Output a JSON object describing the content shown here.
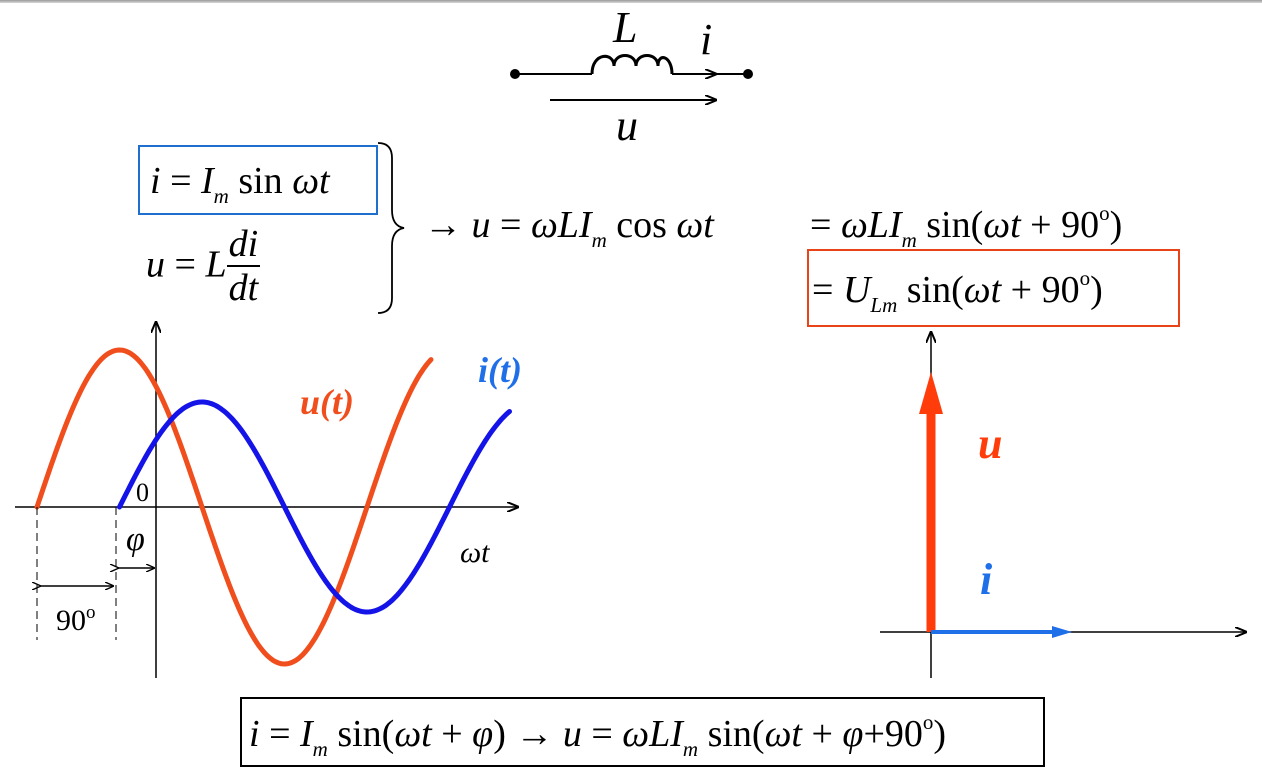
{
  "circuit": {
    "inductor_label": "L",
    "current_label": "i",
    "voltage_label": "u"
  },
  "equations": {
    "current_def": {
      "lhs": "i",
      "eq": "=",
      "amp": "I",
      "amp_sub": "m",
      "func": "sin",
      "arg": "ωt"
    },
    "voltage_def": {
      "lhs": "u",
      "eq": "=",
      "coef": "L",
      "num": "di",
      "den": "dt"
    },
    "result_line1": {
      "arrow": "→",
      "lhs": "u",
      "eq": "=",
      "coef": "ωLI",
      "coef_sub": "m",
      "func": "cos",
      "arg": "ωt"
    },
    "result_line1b": {
      "eq": "=",
      "coef": "ωLI",
      "coef_sub": "m",
      "func_open": "sin(",
      "arg": "ωt",
      "plus": "+",
      "phase": "90",
      "deg": "o",
      "close": ")"
    },
    "result_line2": {
      "eq": "=",
      "amp": "U",
      "amp_sub": "Lm",
      "func_open": "sin(",
      "arg": "ωt",
      "plus": "+",
      "phase": "90",
      "deg": "o",
      "close": ")"
    },
    "bottom": {
      "lhs": "i",
      "eq": "=",
      "amp": "I",
      "amp_sub": "m",
      "func_open": "sin(",
      "arg": "ωt",
      "plus1": "+",
      "phi": "φ",
      "close1": ")",
      "arrow": "→",
      "lhs2": "u",
      "eq2": "=",
      "coef": "ωLI",
      "coef_sub": "m",
      "func2_open": "sin(",
      "arg2": "ωt",
      "plus2": "+",
      "phi2": "φ",
      "plus3": "+",
      "phase": "90",
      "deg": "o",
      "close2": ")"
    }
  },
  "waveform": {
    "u_label": "u(t)",
    "i_label": "i(t)",
    "origin_label": "0",
    "x_axis_label": "ωt",
    "phi_label": "φ",
    "shift_label": "90",
    "shift_deg": "o",
    "u_color": "#f04e1c",
    "i_color": "#1414e8",
    "phase_shift_deg": 90
  },
  "phasor": {
    "u_label": "u",
    "i_label": "i",
    "u_angle_deg": 90,
    "i_angle_deg": 0,
    "u_color": "#ff3c0a",
    "i_color": "#1f6fe8"
  }
}
